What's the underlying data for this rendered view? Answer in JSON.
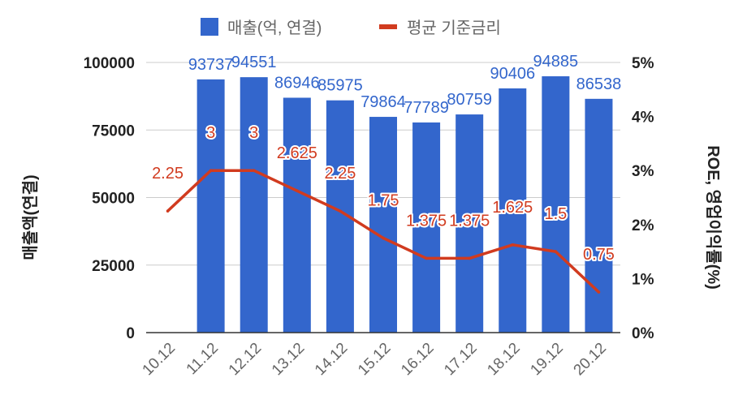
{
  "colors": {
    "bar": "#3366cc",
    "line": "#d13b1f",
    "grid": "#cccccc",
    "axis": "#333333"
  },
  "chart_data": {
    "type": "bar+line",
    "categories": [
      "10.12",
      "11.12",
      "12.12",
      "13.12",
      "14.12",
      "15.12",
      "16.12",
      "17.12",
      "18.12",
      "19.12",
      "20.12"
    ],
    "series": [
      {
        "name": "매출(억, 연결)",
        "type": "bar",
        "axis": "left",
        "values": [
          null,
          93737,
          94551,
          86946,
          85975,
          79864,
          77789,
          80759,
          90406,
          94885,
          86538
        ],
        "labels": [
          "",
          "93737",
          "94551",
          "86946",
          "85975",
          "79864",
          "77789",
          "80759",
          "90406",
          "94885",
          "86538"
        ]
      },
      {
        "name": "평균 기준금리",
        "type": "line",
        "axis": "right",
        "values": [
          2.25,
          3,
          3,
          2.625,
          2.25,
          1.75,
          1.375,
          1.375,
          1.625,
          1.5,
          0.75
        ],
        "labels": [
          "2.25",
          "3",
          "3",
          "2.625",
          "2.25",
          "1.75",
          "1.375",
          "1.375",
          "1.625",
          "1.5",
          "0.75"
        ]
      }
    ],
    "y_left": {
      "label": "매출액(연결)",
      "min": 0,
      "max": 100000,
      "ticks": [
        "0",
        "25000",
        "50000",
        "75000",
        "100000"
      ]
    },
    "y_right": {
      "label": "ROE, 영업이익률(%)",
      "min": 0,
      "max": 5,
      "ticks": [
        "0%",
        "1%",
        "2%",
        "3%",
        "4%",
        "5%"
      ]
    },
    "grid": true,
    "legend_position": "top"
  }
}
